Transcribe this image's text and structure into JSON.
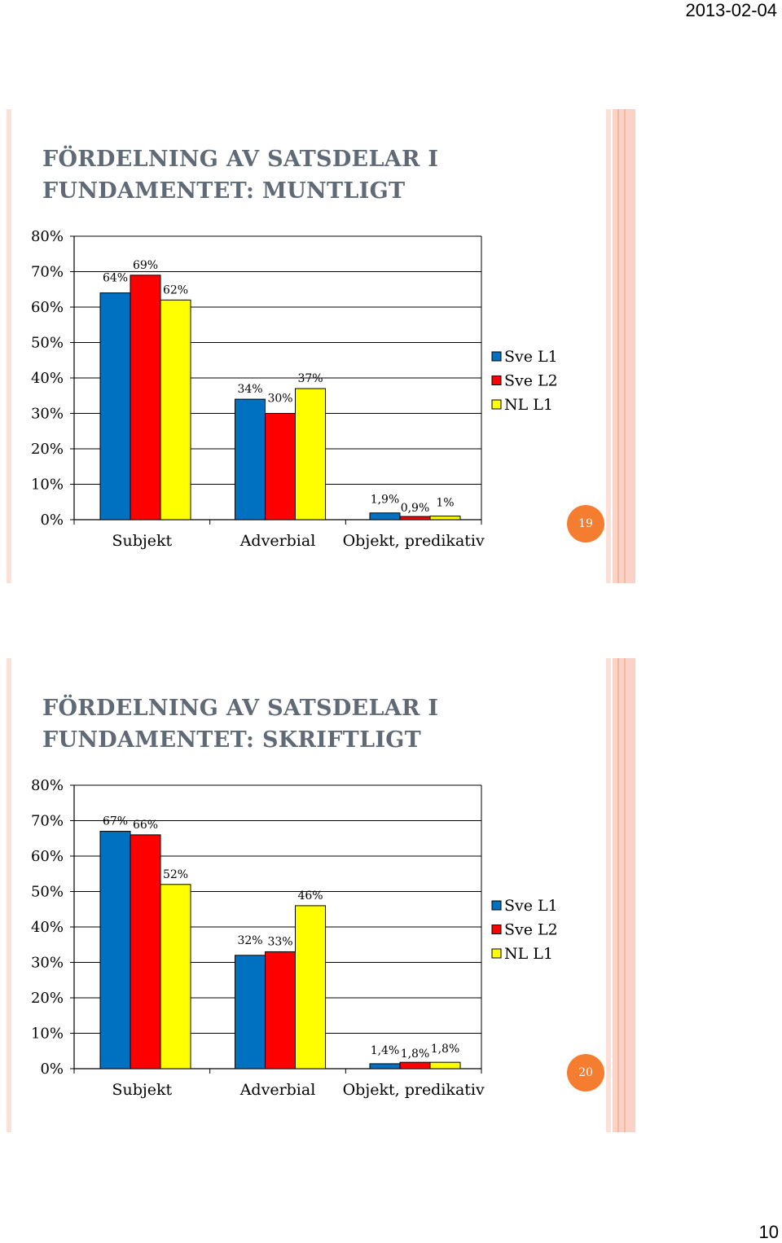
{
  "header": {
    "date": "2013-02-04"
  },
  "footer": {
    "page_number": "10"
  },
  "colors": {
    "Sve L1": "#0070c0",
    "Sve L2": "#ff0000",
    "NL L1": "#ffff00"
  },
  "slides": [
    {
      "title": "FÖRDELNING AV SATSDELAR I FUNDAMENTET: MUNTLIGT",
      "slide_number": "19"
    },
    {
      "title": "FÖRDELNING AV SATSDELAR I FUNDAMENTET: SKRIFTLIGT",
      "slide_number": "20"
    }
  ],
  "chart_data": [
    {
      "type": "bar",
      "title": "",
      "categories": [
        "Subjekt",
        "Adverbial",
        "Objekt, predikativ"
      ],
      "series": [
        {
          "name": "Sve L1",
          "values": [
            64,
            34,
            1.9
          ],
          "labels": [
            "64%",
            "34%",
            "1,9%"
          ]
        },
        {
          "name": "Sve L2",
          "values": [
            69,
            30,
            0.9
          ],
          "labels": [
            "69%",
            "30%",
            "0,9%"
          ]
        },
        {
          "name": "NL L1",
          "values": [
            62,
            37,
            1
          ],
          "labels": [
            "62%",
            "37%",
            "1%"
          ]
        }
      ],
      "ylim": [
        0,
        80
      ],
      "yticks": [
        "0%",
        "10%",
        "20%",
        "30%",
        "40%",
        "50%",
        "60%",
        "70%",
        "80%"
      ],
      "grid": true,
      "legend": "right"
    },
    {
      "type": "bar",
      "title": "",
      "categories": [
        "Subjekt",
        "Adverbial",
        "Objekt, predikativ"
      ],
      "series": [
        {
          "name": "Sve L1",
          "values": [
            67,
            32,
            1.4
          ],
          "labels": [
            "67%",
            "32%",
            "1,4%"
          ]
        },
        {
          "name": "Sve L2",
          "values": [
            66,
            33,
            1.8
          ],
          "labels": [
            "66%",
            "33%",
            "1,8%"
          ]
        },
        {
          "name": "NL L1",
          "values": [
            52,
            46,
            1.8
          ],
          "labels": [
            "52%",
            "46%",
            "1,8%"
          ]
        }
      ],
      "ylim": [
        0,
        80
      ],
      "yticks": [
        "0%",
        "10%",
        "20%",
        "30%",
        "40%",
        "50%",
        "60%",
        "70%",
        "80%"
      ],
      "grid": true,
      "legend": "right"
    }
  ]
}
